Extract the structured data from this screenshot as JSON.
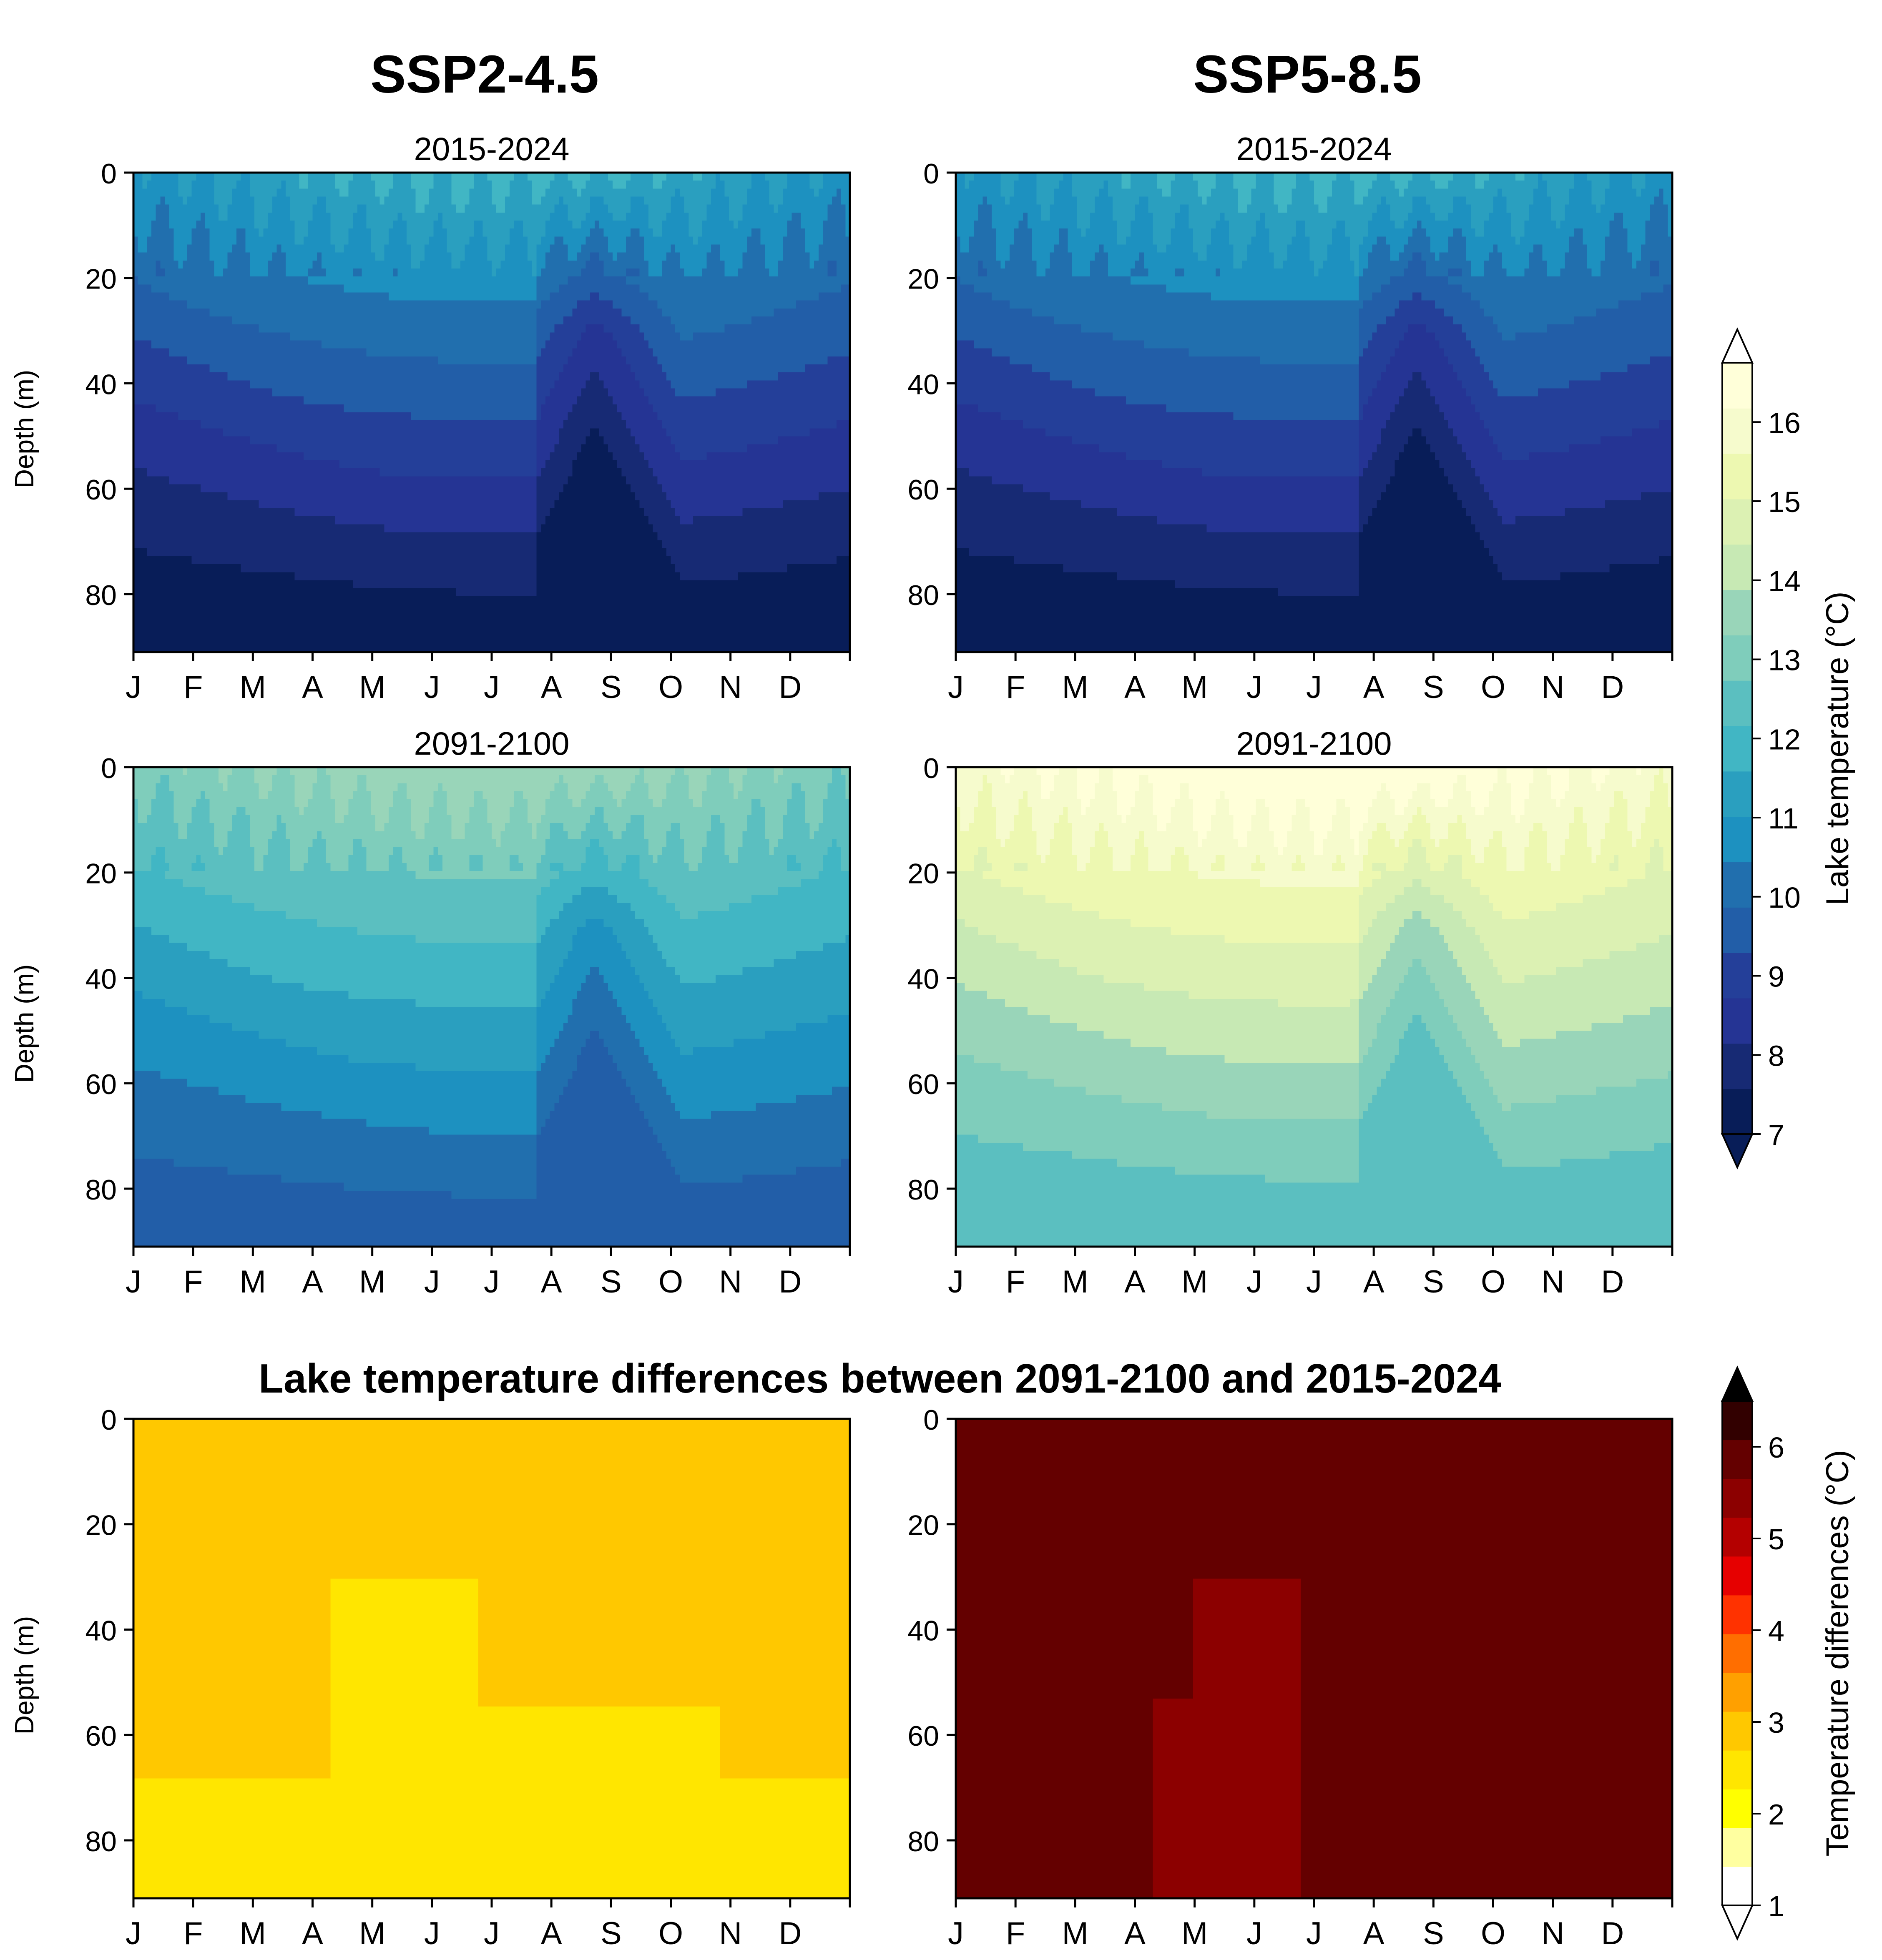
{
  "columns": [
    "SSP2-4.5",
    "SSP5-8.5"
  ],
  "diff_title": "Lake temperature differences between 2091-2100 and 2015-2024",
  "chart_data": [
    {
      "type": "heatmap",
      "scenario": "SSP2-4.5",
      "title": "2015-2024",
      "xlabel": "",
      "ylabel": "Depth (m)",
      "x_ticks": [
        "J",
        "F",
        "M",
        "A",
        "M",
        "J",
        "J",
        "A",
        "S",
        "O",
        "N",
        "D"
      ],
      "y_ticks": [
        0,
        20,
        40,
        60,
        80
      ],
      "ylim": [
        91,
        0
      ],
      "value_range": [
        7.2,
        11.8
      ],
      "colorbar": "Lake temperature (°C)"
    },
    {
      "type": "heatmap",
      "scenario": "SSP5-8.5",
      "title": "2015-2024",
      "xlabel": "",
      "ylabel": "",
      "x_ticks": [
        "J",
        "F",
        "M",
        "A",
        "M",
        "J",
        "J",
        "A",
        "S",
        "O",
        "N",
        "D"
      ],
      "y_ticks": [
        0,
        20,
        40,
        60,
        80
      ],
      "ylim": [
        91,
        0
      ],
      "value_range": [
        7.2,
        11.8
      ],
      "colorbar": "Lake temperature (°C)"
    },
    {
      "type": "heatmap",
      "scenario": "SSP2-4.5",
      "title": "2091-2100",
      "xlabel": "",
      "ylabel": "Depth (m)",
      "x_ticks": [
        "J",
        "F",
        "M",
        "A",
        "M",
        "J",
        "J",
        "A",
        "S",
        "O",
        "N",
        "D"
      ],
      "y_ticks": [
        0,
        20,
        40,
        60,
        80
      ],
      "ylim": [
        91,
        0
      ],
      "value_range": [
        9.6,
        13.8
      ],
      "colorbar": "Lake temperature (°C)"
    },
    {
      "type": "heatmap",
      "scenario": "SSP5-8.5",
      "title": "2091-2100",
      "xlabel": "",
      "ylabel": "",
      "x_ticks": [
        "J",
        "F",
        "M",
        "A",
        "M",
        "J",
        "J",
        "A",
        "S",
        "O",
        "N",
        "D"
      ],
      "y_ticks": [
        0,
        20,
        40,
        60,
        80
      ],
      "ylim": [
        91,
        0
      ],
      "value_range": [
        12.3,
        16.8
      ],
      "colorbar": "Lake temperature (°C)"
    },
    {
      "type": "heatmap",
      "scenario": "SSP2-4.5",
      "title": "",
      "xlabel": "",
      "ylabel": "Depth (m)",
      "x_ticks": [
        "J",
        "F",
        "M",
        "A",
        "M",
        "J",
        "J",
        "A",
        "S",
        "O",
        "N",
        "D"
      ],
      "y_ticks": [
        0,
        20,
        40,
        60,
        80
      ],
      "ylim": [
        91,
        0
      ],
      "value_range": [
        1.9,
        3.2
      ],
      "colorbar": "Temperature differences (°C)"
    },
    {
      "type": "heatmap",
      "scenario": "SSP5-8.5",
      "title": "",
      "xlabel": "",
      "ylabel": "",
      "x_ticks": [
        "J",
        "F",
        "M",
        "A",
        "M",
        "J",
        "J",
        "A",
        "S",
        "O",
        "N",
        "D"
      ],
      "y_ticks": [
        0,
        20,
        40,
        60,
        80
      ],
      "ylim": [
        91,
        0
      ],
      "value_range": [
        5.0,
        6.3
      ],
      "colorbar": "Temperature differences (°C)"
    }
  ],
  "colorbars": [
    {
      "label": "Lake temperature (°C)",
      "vmin": 7,
      "vmax": 16.75,
      "extend": "both",
      "ticks": [
        7,
        8,
        9,
        10,
        11,
        12,
        13,
        14,
        15,
        16
      ],
      "colors": [
        "#081d58",
        "#172a74",
        "#253494",
        "#243f99",
        "#225ea8",
        "#216fae",
        "#1d91c0",
        "#2a9fbf",
        "#41b6c4",
        "#5bbfc0",
        "#7fcdbb",
        "#99d5b9",
        "#c7e9b4",
        "#dcf1b3",
        "#edf8b1",
        "#f6fbcd",
        "#ffffd9"
      ]
    },
    {
      "label": "Temperature differences (°C)",
      "vmin": 1,
      "vmax": 6.5,
      "extend": "max",
      "ticks": [
        1,
        2,
        3,
        4,
        5,
        6
      ],
      "colors": [
        "#ffffff",
        "#ffffa0",
        "#ffff00",
        "#ffe600",
        "#ffc800",
        "#ffa000",
        "#ff6e00",
        "#ff3200",
        "#e60000",
        "#b40000",
        "#8c0000",
        "#640000",
        "#320000"
      ]
    }
  ]
}
